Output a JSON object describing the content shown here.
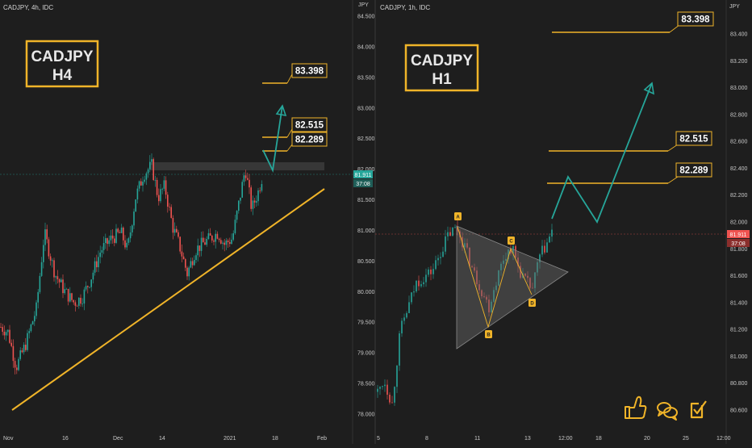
{
  "colors": {
    "background": "#1e1e1e",
    "up": "#26a69a",
    "down": "#ef5350",
    "accent": "#f0b429",
    "projection": "#26a69a",
    "price_tag_left": "#26a69a",
    "price_tag_right": "#ef5350"
  },
  "left_panel": {
    "symbol": "CADJPY, 4h, IDC",
    "timeframe_box": {
      "line1": "CADJPY",
      "line2": "H4"
    },
    "price_axis_ticks": [
      "84.500",
      "84.000",
      "83.500",
      "83.000",
      "82.500",
      "82.000",
      "81.500",
      "81.000",
      "80.500",
      "80.000",
      "79.500",
      "79.000",
      "78.500",
      "78.000"
    ],
    "time_axis_ticks": [
      "Nov",
      "16",
      "Dec",
      "14",
      "2021",
      "18",
      "Feb"
    ],
    "level_labels": [
      "83.398",
      "82.515",
      "82.289"
    ],
    "current_price": "81.911",
    "countdown": "37:08"
  },
  "right_panel": {
    "symbol": "CADJPY, 1h, IDC",
    "timeframe_box": {
      "line1": "CADJPY",
      "line2": "H1"
    },
    "price_axis_ticks": [
      "83.400",
      "83.200",
      "83.000",
      "82.800",
      "82.600",
      "82.400",
      "82.200",
      "82.000",
      "81.800",
      "81.600",
      "81.400",
      "81.200",
      "81.000",
      "80.800",
      "80.600"
    ],
    "time_axis_ticks": [
      "5",
      "8",
      "11",
      "13",
      "12:00",
      "18",
      "20",
      "25",
      "12:00"
    ],
    "level_labels": [
      "83.398",
      "82.515",
      "82.289"
    ],
    "current_price": "81.911",
    "countdown": "37:08",
    "pattern_point_labels": [
      "A",
      "B",
      "C",
      "D"
    ]
  },
  "chart_data": [
    {
      "type": "candlestick",
      "title": "CADJPY, 4h, IDC",
      "ylim": [
        77.8,
        84.6
      ],
      "x_ticks": [
        "Nov",
        "16",
        "Dec",
        "14",
        "2021",
        "18",
        "Feb"
      ],
      "resistance_levels": [
        83.398,
        82.515,
        82.289
      ],
      "resistance_zone": [
        81.95,
        82.08
      ],
      "current_price": 81.911,
      "path_points": [
        {
          "x": 0,
          "y": 79.3
        },
        {
          "x": 10,
          "y": 79.2
        },
        {
          "x": 20,
          "y": 78.6
        },
        {
          "x": 32,
          "y": 79.0
        },
        {
          "x": 45,
          "y": 79.6
        },
        {
          "x": 55,
          "y": 80.9
        },
        {
          "x": 68,
          "y": 80.2
        },
        {
          "x": 80,
          "y": 79.9
        },
        {
          "x": 92,
          "y": 79.7
        },
        {
          "x": 102,
          "y": 79.8
        },
        {
          "x": 112,
          "y": 80.1
        },
        {
          "x": 125,
          "y": 80.6
        },
        {
          "x": 138,
          "y": 80.8
        },
        {
          "x": 150,
          "y": 80.9
        },
        {
          "x": 158,
          "y": 80.6
        },
        {
          "x": 168,
          "y": 81.5
        },
        {
          "x": 178,
          "y": 81.9
        },
        {
          "x": 188,
          "y": 82.05
        },
        {
          "x": 196,
          "y": 81.5
        },
        {
          "x": 204,
          "y": 81.7
        },
        {
          "x": 214,
          "y": 81.0
        },
        {
          "x": 222,
          "y": 80.7
        },
        {
          "x": 232,
          "y": 80.2
        },
        {
          "x": 242,
          "y": 80.6
        },
        {
          "x": 250,
          "y": 80.7
        },
        {
          "x": 260,
          "y": 80.8
        },
        {
          "x": 270,
          "y": 80.9
        },
        {
          "x": 278,
          "y": 80.7
        },
        {
          "x": 288,
          "y": 80.8
        },
        {
          "x": 296,
          "y": 81.4
        },
        {
          "x": 304,
          "y": 82.0
        },
        {
          "x": 312,
          "y": 81.3
        },
        {
          "x": 320,
          "y": 81.6
        },
        {
          "x": 326,
          "y": 81.911
        }
      ],
      "trendline": [
        {
          "x": 15,
          "y": 78.1
        },
        {
          "x": 402,
          "y": 81.7
        }
      ],
      "projection": [
        {
          "x": 326,
          "y": 82.3
        },
        {
          "x": 338,
          "y": 82.0
        },
        {
          "x": 350,
          "y": 83.0
        }
      ]
    },
    {
      "type": "candlestick",
      "title": "CADJPY, 1h, IDC",
      "ylim": [
        80.45,
        83.55
      ],
      "x_ticks": [
        "5",
        "8",
        "11",
        "13",
        "12:00",
        "18",
        "20",
        "25",
        "12:00"
      ],
      "resistance_levels": [
        83.398,
        82.515,
        82.289
      ],
      "current_price": 81.911,
      "path_points": [
        {
          "x": 468,
          "y": 80.6
        },
        {
          "x": 476,
          "y": 80.7
        },
        {
          "x": 486,
          "y": 80.5
        },
        {
          "x": 496,
          "y": 81.1
        },
        {
          "x": 506,
          "y": 81.3
        },
        {
          "x": 516,
          "y": 81.5
        },
        {
          "x": 526,
          "y": 81.55
        },
        {
          "x": 536,
          "y": 81.6
        },
        {
          "x": 546,
          "y": 81.75
        },
        {
          "x": 556,
          "y": 81.9
        },
        {
          "x": 566,
          "y": 81.95
        },
        {
          "x": 576,
          "y": 81.8
        },
        {
          "x": 586,
          "y": 81.6
        },
        {
          "x": 596,
          "y": 81.45
        },
        {
          "x": 606,
          "y": 81.3
        },
        {
          "x": 614,
          "y": 81.5
        },
        {
          "x": 624,
          "y": 81.7
        },
        {
          "x": 634,
          "y": 81.8
        },
        {
          "x": 644,
          "y": 81.6
        },
        {
          "x": 652,
          "y": 81.5
        },
        {
          "x": 660,
          "y": 81.45
        },
        {
          "x": 668,
          "y": 81.7
        },
        {
          "x": 676,
          "y": 81.8
        },
        {
          "x": 684,
          "y": 81.911
        }
      ],
      "triangle": [
        {
          "x": 566,
          "y": 81.95
        },
        {
          "x": 704,
          "y": 81.7
        },
        {
          "x": 566,
          "y": 81.07
        }
      ],
      "pattern_points": [
        {
          "label": "A",
          "x": 567,
          "y": 81.95
        },
        {
          "label": "B",
          "x": 605,
          "y": 81.25
        },
        {
          "label": "C",
          "x": 633,
          "y": 81.8
        },
        {
          "label": "D",
          "x": 659,
          "y": 81.45
        }
      ],
      "projection": [
        {
          "x": 684,
          "y": 81.95
        },
        {
          "x": 704,
          "y": 82.33
        },
        {
          "x": 740,
          "y": 81.98
        },
        {
          "x": 808,
          "y": 83.0
        }
      ]
    }
  ]
}
